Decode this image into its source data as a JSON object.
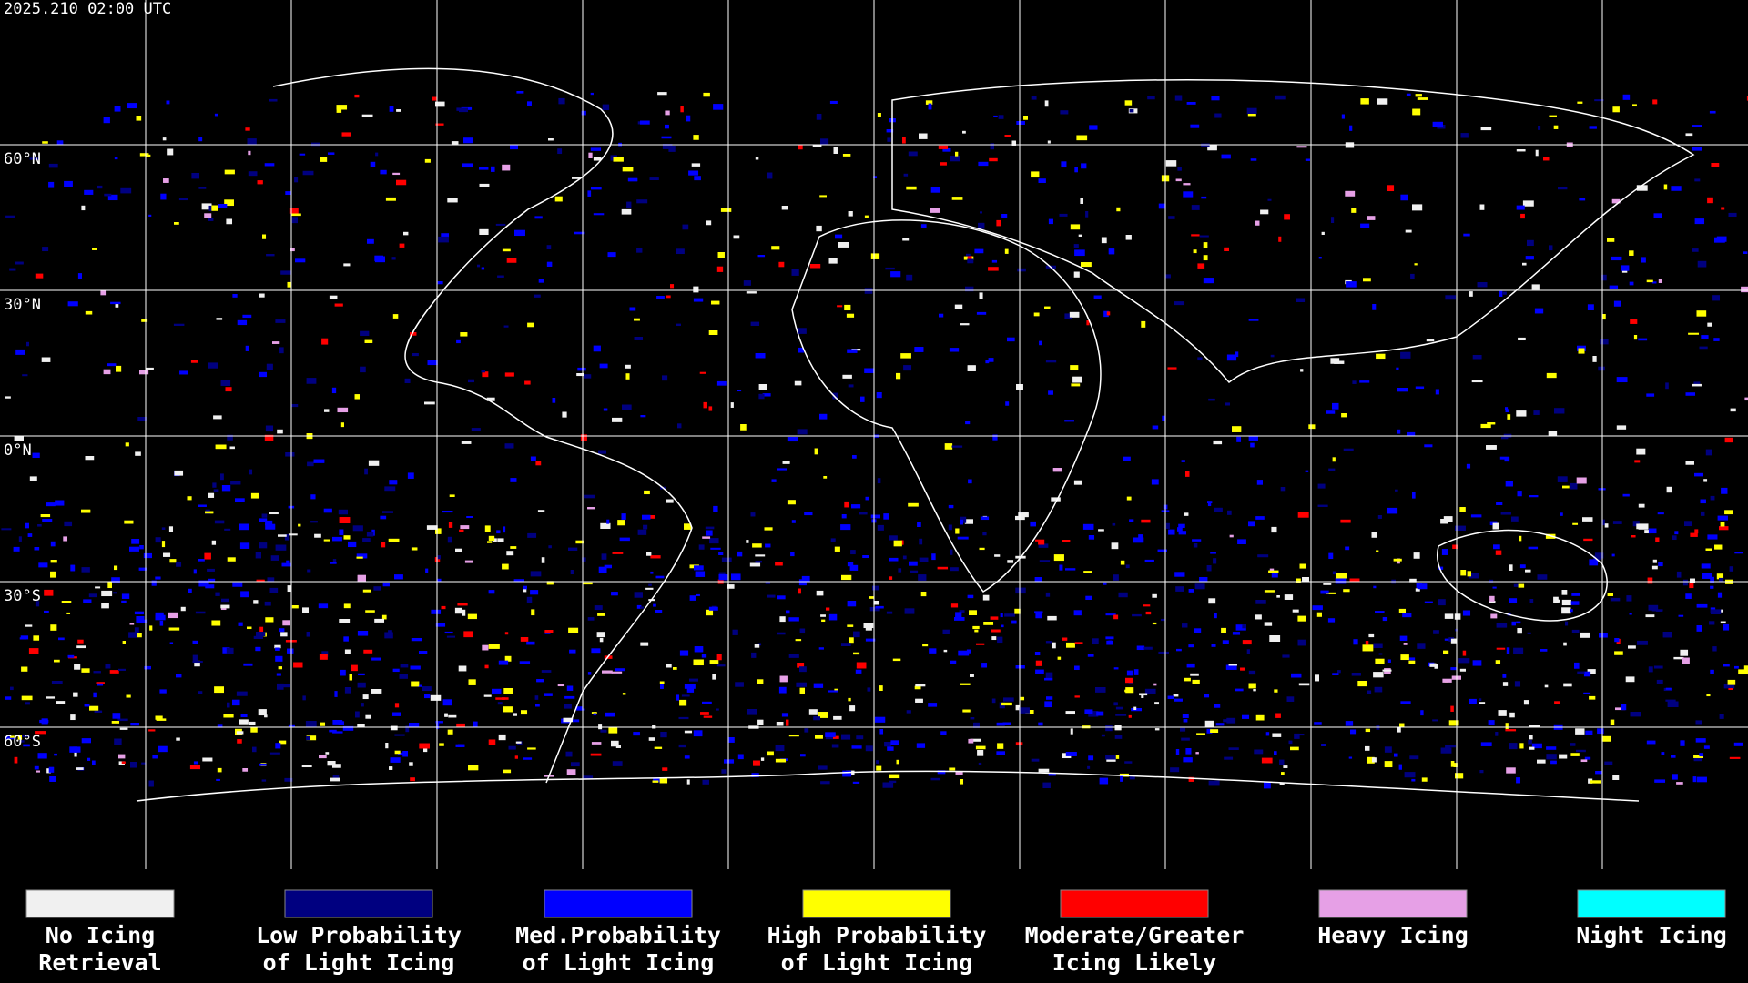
{
  "header": {
    "timestamp": "2025.210 02:00 UTC"
  },
  "map": {
    "latitude_labels": [
      "60°N",
      "30°N",
      "0°N",
      "30°S",
      "60°S"
    ]
  },
  "legend": {
    "items": [
      {
        "label_lines": [
          "No Icing",
          "Retrieval"
        ],
        "color": "#f0f0f0"
      },
      {
        "label_lines": [
          "Low Probability",
          "of Light Icing"
        ],
        "color": "#000080"
      },
      {
        "label_lines": [
          "Med.Probability",
          "of Light Icing"
        ],
        "color": "#0000ff"
      },
      {
        "label_lines": [
          "High Probability",
          "of Light Icing"
        ],
        "color": "#ffff00"
      },
      {
        "label_lines": [
          "Moderate/Greater",
          "Icing Likely"
        ],
        "color": "#ff0000"
      },
      {
        "label_lines": [
          "Heavy Icing"
        ],
        "color": "#e6a0e6"
      },
      {
        "label_lines": [
          "Night Icing"
        ],
        "color": "#00ffff"
      }
    ]
  }
}
